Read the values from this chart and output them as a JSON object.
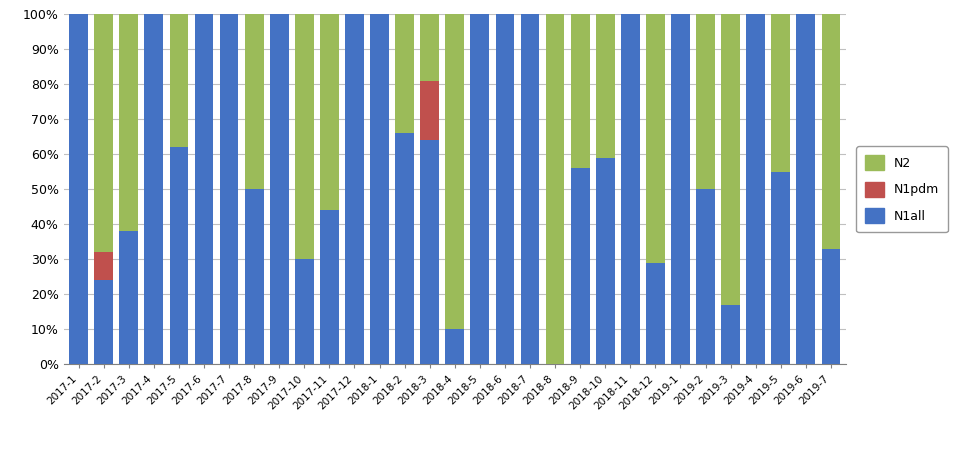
{
  "categories": [
    "2017-1",
    "2017-2",
    "2017-3",
    "2017-4",
    "2017-5",
    "2017-6",
    "2017-7",
    "2017-8",
    "2017-9",
    "2017-10",
    "2017-11",
    "2017-12",
    "2018-1",
    "2018-2",
    "2018-3",
    "2018-4",
    "2018-5",
    "2018-6",
    "2018-7",
    "2018-8",
    "2018-9",
    "2018-10",
    "2018-11",
    "2018-12",
    "2019-1",
    "2019-2",
    "2019-3",
    "2019-4",
    "2019-5",
    "2019-6",
    "2019-7"
  ],
  "N1all": [
    100,
    24,
    38,
    100,
    62,
    100,
    100,
    50,
    100,
    30,
    44,
    100,
    100,
    66,
    64,
    10,
    100,
    100,
    100,
    0,
    56,
    59,
    100,
    29,
    100,
    50,
    17,
    100,
    55,
    100,
    33
  ],
  "N1pdm": [
    0,
    8,
    0,
    0,
    0,
    0,
    0,
    0,
    0,
    0,
    0,
    0,
    0,
    0,
    17,
    0,
    0,
    0,
    0,
    0,
    0,
    0,
    0,
    0,
    0,
    0,
    0,
    0,
    0,
    0,
    0
  ],
  "N2": [
    0,
    68,
    62,
    0,
    38,
    0,
    0,
    50,
    0,
    70,
    56,
    0,
    0,
    34,
    19,
    90,
    0,
    0,
    0,
    100,
    44,
    41,
    0,
    71,
    0,
    50,
    83,
    0,
    45,
    0,
    67
  ],
  "color_N1all": "#4472C4",
  "color_N1pdm": "#C0504D",
  "color_N2": "#9BBB59",
  "background_color": "#FFFFFF",
  "grid_color": "#C0C0C0",
  "legend_labels": [
    "N2",
    "N1pdm",
    "N1all"
  ]
}
